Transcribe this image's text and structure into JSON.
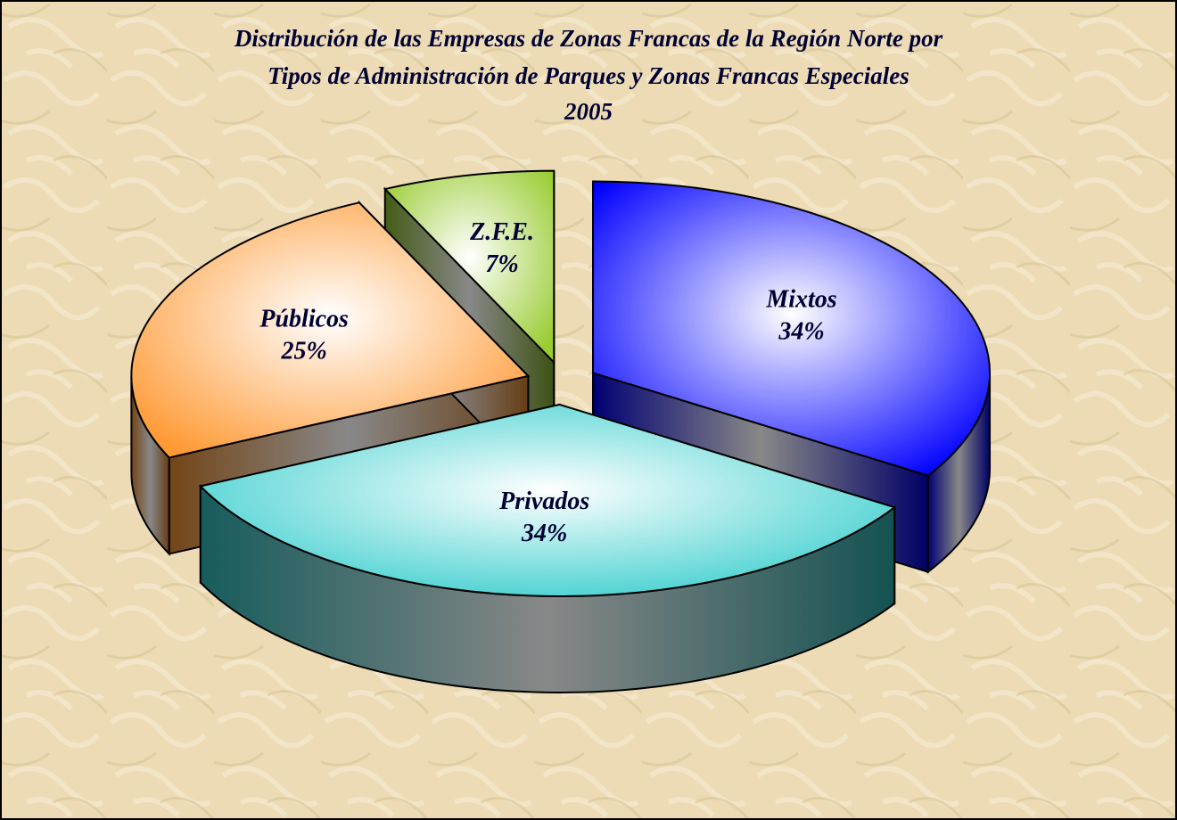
{
  "chart_data": {
    "type": "pie",
    "title": [
      "Distribución de las Empresas de Zonas Francas de la Región Norte por",
      "Tipos de Administración de Parques y Zonas Francas Especiales",
      "2005"
    ],
    "categories": [
      "Mixtos",
      "Privados",
      "Públicos",
      "Z.F.E."
    ],
    "values": [
      34,
      34,
      25,
      7
    ],
    "value_labels": [
      "34%",
      "34%",
      "25%",
      "7%"
    ],
    "colors": [
      "#0000ff",
      "#33cccc",
      "#ff9933",
      "#99cc33"
    ]
  }
}
